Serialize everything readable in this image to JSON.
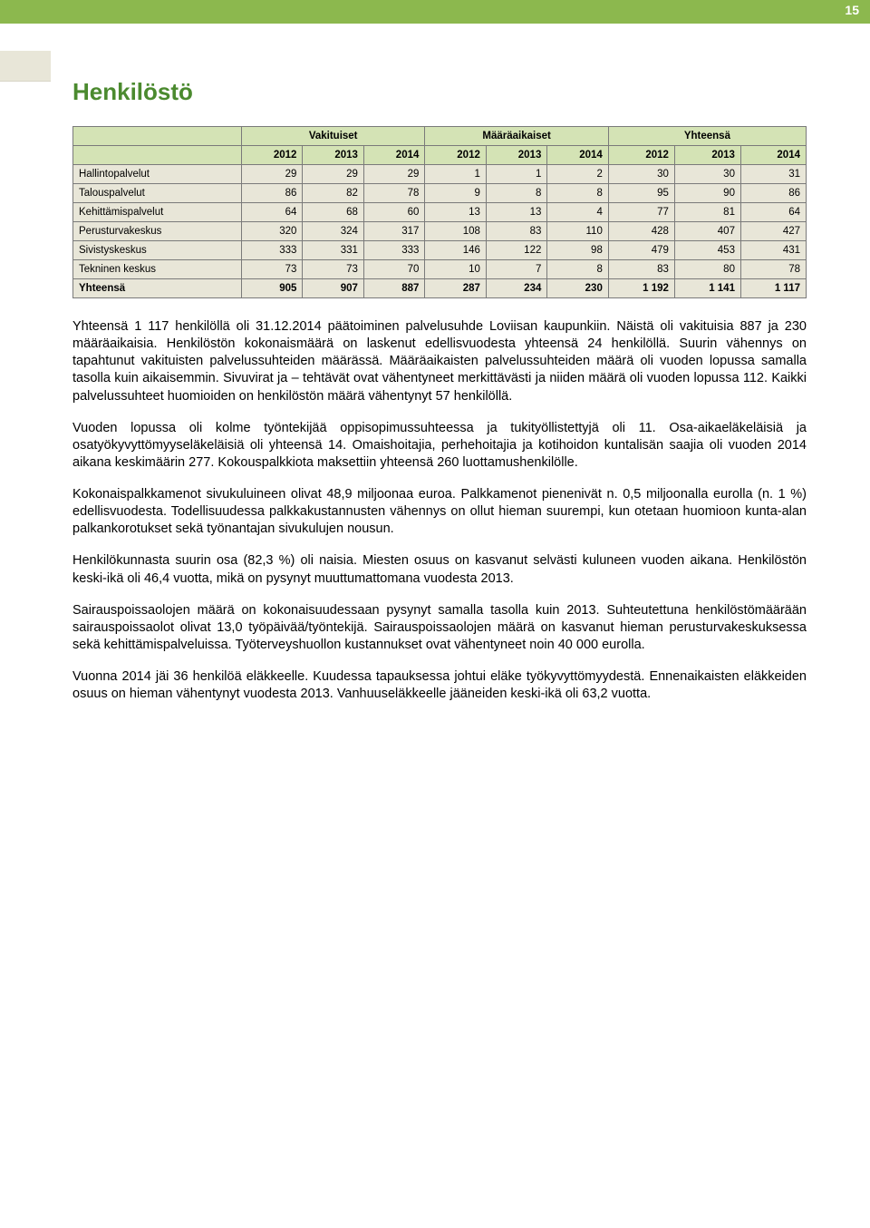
{
  "page_number": "15",
  "title": "Henkilöstö",
  "table": {
    "group_headers": [
      "Vakituiset",
      "Määräaikaiset",
      "Yhteensä"
    ],
    "years": [
      "2012",
      "2013",
      "2014",
      "2012",
      "2013",
      "2014",
      "2012",
      "2013",
      "2014"
    ],
    "rows": [
      {
        "label": "Hallintopalvelut",
        "cells": [
          "29",
          "29",
          "29",
          "1",
          "1",
          "2",
          "30",
          "30",
          "31"
        ]
      },
      {
        "label": "Talouspalvelut",
        "cells": [
          "86",
          "82",
          "78",
          "9",
          "8",
          "8",
          "95",
          "90",
          "86"
        ]
      },
      {
        "label": "Kehittämispalvelut",
        "cells": [
          "64",
          "68",
          "60",
          "13",
          "13",
          "4",
          "77",
          "81",
          "64"
        ]
      },
      {
        "label": "Perusturvakeskus",
        "cells": [
          "320",
          "324",
          "317",
          "108",
          "83",
          "110",
          "428",
          "407",
          "427"
        ]
      },
      {
        "label": "Sivistyskeskus",
        "cells": [
          "333",
          "331",
          "333",
          "146",
          "122",
          "98",
          "479",
          "453",
          "431"
        ]
      },
      {
        "label": "Tekninen keskus",
        "cells": [
          "73",
          "73",
          "70",
          "10",
          "7",
          "8",
          "83",
          "80",
          "78"
        ]
      }
    ],
    "total": {
      "label": "Yhteensä",
      "cells": [
        "905",
        "907",
        "887",
        "287",
        "234",
        "230",
        "1 192",
        "1 141",
        "1 117"
      ]
    }
  },
  "paragraphs": [
    "Yhteensä 1 117 henkilöllä oli 31.12.2014 päätoiminen palvelusuhde Loviisan kaupunkiin. Näistä oli vakituisia 887 ja 230 määräaikaisia. Henkilöstön kokonaismäärä on laskenut edellisvuodesta yhteensä 24 henkilöllä. Suurin vähennys on tapahtunut vakituisten palvelussuhteiden määrässä. Määräaikaisten palvelussuhteiden määrä oli vuoden lopussa samalla tasolla kuin aikaisemmin. Sivuvirat ja – tehtävät ovat vähentyneet merkittävästi ja niiden määrä oli vuoden lopussa 112. Kaikki palvelussuhteet huomioiden on henkilöstön määrä vähentynyt 57 henkilöllä.",
    "Vuoden lopussa oli kolme työntekijää oppisopimussuhteessa ja tukityöllistettyjä oli 11. Osa-aikaeläkeläisiä ja osatyökyvyttömyyseläkeläisiä oli yhteensä 14. Omaishoitajia, perhehoitajia ja kotihoidon kuntalisän saajia oli vuoden 2014 aikana keskimäärin 277. Kokouspalkkiota maksettiin yhteensä 260 luottamushenkilölle.",
    "Kokonaispalkkamenot sivukuluineen olivat 48,9 miljoonaa euroa. Palkkamenot pienenivät n. 0,5 miljoonalla eurolla (n. 1 %) edellisvuodesta. Todellisuudessa palkkakustannusten vähennys on ollut hieman suurempi, kun otetaan huomioon kunta-alan palkankorotukset sekä työnantajan sivukulujen nousun.",
    "Henkilökunnasta suurin osa (82,3 %) oli naisia. Miesten osuus on kasvanut selvästi kuluneen vuoden aikana. Henkilöstön keski-ikä oli 46,4 vuotta, mikä on pysynyt muuttumattomana vuodesta 2013.",
    "Sairauspoissaolojen määrä on kokonaisuudessaan pysynyt samalla tasolla kuin 2013. Suhteutettuna henkilöstömäärään sairauspoissaolot olivat 13,0 työpäivää/työntekijä. Sairauspoissaolojen määrä on kasvanut hieman perusturvakeskuksessa sekä kehittämispalveluissa. Työterveyshuollon kustannukset ovat vähentyneet noin 40 000 eurolla.",
    "Vuonna 2014 jäi 36 henkilöä eläkkeelle. Kuudessa tapauksessa johtui eläke työkyvyttömyydestä. Ennenaikaisten eläkkeiden osuus on hieman vähentynyt vuodesta 2013. Vanhuuseläkkeelle jääneiden keski-ikä oli 63,2 vuotta."
  ]
}
